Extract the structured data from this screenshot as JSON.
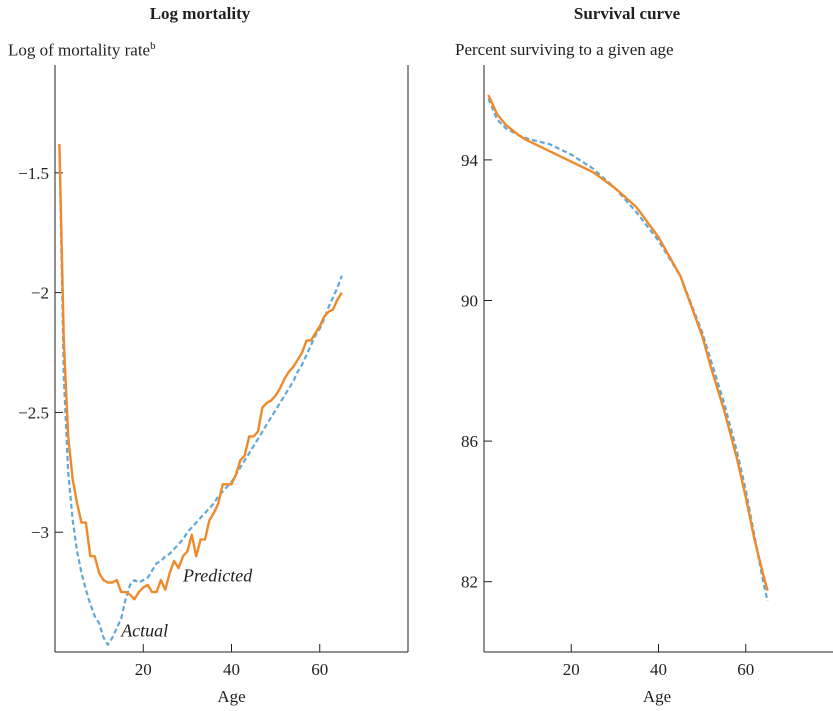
{
  "chart_data": [
    {
      "type": "line",
      "title": "Log mortality",
      "subtitle": "Log of mortality rate",
      "subtitle_superscript": "b",
      "xlabel": "Age",
      "ylabel": "",
      "xlim": [
        0,
        80
      ],
      "ylim": [
        -3.5,
        -1.05
      ],
      "xticks": [
        20,
        40,
        60
      ],
      "yticks": [
        -1.5,
        -2,
        -2.5,
        -3
      ],
      "ytick_labels": [
        "−1.5",
        "−2",
        "−2.5",
        "−3"
      ],
      "annotations": [
        {
          "text": "Predicted",
          "x": 29,
          "y": -3.18
        },
        {
          "text": "Actual",
          "x": 15,
          "y": -3.41
        }
      ],
      "series": [
        {
          "name": "Predicted",
          "color": "#ef8a2c",
          "style": "solid",
          "x": [
            1,
            2,
            3,
            4,
            5,
            6,
            7,
            8,
            9,
            10,
            11,
            12,
            13,
            14,
            15,
            16,
            17,
            18,
            19,
            20,
            21,
            22,
            23,
            24,
            25,
            26,
            27,
            28,
            29,
            30,
            31,
            32,
            33,
            34,
            35,
            36,
            37,
            38,
            39,
            40,
            41,
            42,
            43,
            44,
            45,
            46,
            47,
            48,
            49,
            50,
            51,
            52,
            53,
            54,
            55,
            56,
            57,
            58,
            59,
            60,
            61,
            62,
            63,
            64,
            65
          ],
          "y": [
            -1.38,
            -2.2,
            -2.6,
            -2.78,
            -2.88,
            -2.96,
            -2.96,
            -3.1,
            -3.1,
            -3.17,
            -3.2,
            -3.21,
            -3.21,
            -3.2,
            -3.25,
            -3.25,
            -3.26,
            -3.28,
            -3.25,
            -3.23,
            -3.22,
            -3.25,
            -3.25,
            -3.2,
            -3.24,
            -3.17,
            -3.12,
            -3.15,
            -3.1,
            -3.08,
            -3.01,
            -3.1,
            -3.03,
            -3.03,
            -2.95,
            -2.92,
            -2.88,
            -2.8,
            -2.8,
            -2.8,
            -2.76,
            -2.7,
            -2.68,
            -2.6,
            -2.6,
            -2.58,
            -2.48,
            -2.46,
            -2.45,
            -2.43,
            -2.4,
            -2.36,
            -2.33,
            -2.31,
            -2.28,
            -2.25,
            -2.2,
            -2.2,
            -2.17,
            -2.14,
            -2.1,
            -2.08,
            -2.07,
            -2.03,
            -2.0
          ]
        },
        {
          "name": "Actual",
          "color": "#5fa8d8",
          "style": "dashed",
          "x": [
            1,
            2,
            3,
            4,
            5,
            6,
            7,
            8,
            9,
            10,
            11,
            12,
            13,
            14,
            15,
            16,
            17,
            18,
            19,
            20,
            21,
            22,
            23,
            24,
            25,
            26,
            27,
            28,
            29,
            30,
            31,
            32,
            33,
            34,
            35,
            36,
            37,
            38,
            39,
            40,
            41,
            42,
            43,
            44,
            45,
            46,
            47,
            48,
            49,
            50,
            51,
            52,
            53,
            54,
            55,
            56,
            57,
            58,
            59,
            60,
            61,
            62,
            63,
            64,
            65
          ],
          "y": [
            -1.38,
            -2.35,
            -2.75,
            -2.95,
            -3.08,
            -3.17,
            -3.24,
            -3.3,
            -3.35,
            -3.38,
            -3.44,
            -3.47,
            -3.44,
            -3.4,
            -3.36,
            -3.28,
            -3.22,
            -3.2,
            -3.21,
            -3.2,
            -3.19,
            -3.16,
            -3.13,
            -3.12,
            -3.1,
            -3.09,
            -3.07,
            -3.05,
            -3.03,
            -3.0,
            -2.98,
            -2.96,
            -2.94,
            -2.92,
            -2.9,
            -2.88,
            -2.85,
            -2.83,
            -2.81,
            -2.79,
            -2.76,
            -2.73,
            -2.7,
            -2.67,
            -2.64,
            -2.61,
            -2.58,
            -2.55,
            -2.52,
            -2.49,
            -2.46,
            -2.43,
            -2.4,
            -2.37,
            -2.33,
            -2.3,
            -2.26,
            -2.22,
            -2.18,
            -2.15,
            -2.11,
            -2.06,
            -2.02,
            -1.98,
            -1.93
          ]
        }
      ]
    },
    {
      "type": "line",
      "title": "Survival curve",
      "subtitle": "Percent surviving to a given age",
      "xlabel": "Age",
      "ylabel": "",
      "xlim": [
        0,
        80
      ],
      "ylim": [
        80.0,
        96.7
      ],
      "xticks": [
        20,
        40,
        60
      ],
      "yticks": [
        82,
        86,
        90,
        94
      ],
      "ytick_labels": [
        "82",
        "86",
        "90",
        "94"
      ],
      "series": [
        {
          "name": "Predicted",
          "color": "#ef8a2c",
          "style": "solid",
          "x": [
            1,
            3,
            5,
            8,
            10,
            15,
            20,
            25,
            30,
            35,
            40,
            45,
            50,
            52,
            55,
            58,
            60,
            62,
            64,
            65
          ],
          "y": [
            95.85,
            95.3,
            95.0,
            94.7,
            94.55,
            94.25,
            93.95,
            93.65,
            93.2,
            92.65,
            91.8,
            90.7,
            89.0,
            88.1,
            86.9,
            85.5,
            84.4,
            83.2,
            82.2,
            81.75
          ]
        },
        {
          "name": "Actual",
          "color": "#5fa8d8",
          "style": "dashed",
          "x": [
            1,
            3,
            5,
            8,
            10,
            15,
            20,
            25,
            30,
            35,
            40,
            45,
            50,
            52,
            55,
            58,
            60,
            62,
            64,
            65
          ],
          "y": [
            95.75,
            95.15,
            94.9,
            94.7,
            94.6,
            94.45,
            94.15,
            93.75,
            93.2,
            92.5,
            91.7,
            90.7,
            89.1,
            88.3,
            87.1,
            85.7,
            84.6,
            83.3,
            82.0,
            81.45
          ]
        }
      ]
    }
  ]
}
